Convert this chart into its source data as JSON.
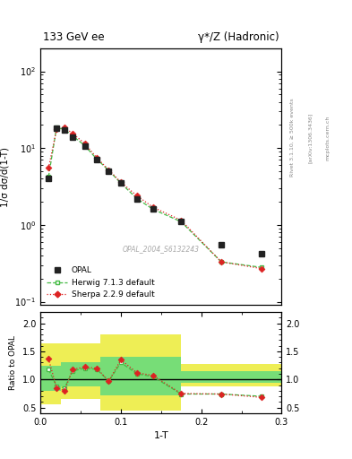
{
  "title_left": "133 GeV ee",
  "title_right": "γ*/Z (Hadronic)",
  "ylabel_main": "1/σ dσ/d(1-T)",
  "ylabel_ratio": "Ratio to OPAL",
  "xlabel": "1-T",
  "watermark": "OPAL_2004_S6132243",
  "rivet_label": "Rivet 3.1.10, ≥ 500k events",
  "arxiv_label": "[arXiv:1306.3436]",
  "mcplots_label": "mcplots.cern.ch",
  "opal_x": [
    0.01,
    0.02,
    0.03,
    0.04,
    0.055,
    0.07,
    0.085,
    0.1,
    0.12,
    0.14,
    0.175,
    0.225,
    0.275
  ],
  "opal_y": [
    4.0,
    18.0,
    17.0,
    14.0,
    10.5,
    7.0,
    5.0,
    3.5,
    2.2,
    1.6,
    1.1,
    0.55,
    0.42
  ],
  "herwig_x": [
    0.01,
    0.02,
    0.03,
    0.04,
    0.055,
    0.07,
    0.085,
    0.1,
    0.12,
    0.14,
    0.175,
    0.225,
    0.275
  ],
  "herwig_y": [
    4.2,
    18.5,
    17.5,
    14.5,
    10.8,
    7.2,
    5.1,
    3.5,
    2.2,
    1.6,
    1.1,
    0.33,
    0.28
  ],
  "sherpa_x": [
    0.01,
    0.02,
    0.03,
    0.04,
    0.055,
    0.07,
    0.085,
    0.1,
    0.12,
    0.14,
    0.175,
    0.225,
    0.275
  ],
  "sherpa_y": [
    5.5,
    17.5,
    18.5,
    15.5,
    11.5,
    7.5,
    5.2,
    3.6,
    2.4,
    1.7,
    1.15,
    0.33,
    0.27
  ],
  "ratio_herwig_x": [
    0.01,
    0.02,
    0.03,
    0.04,
    0.055,
    0.07,
    0.085,
    0.1,
    0.12,
    0.14,
    0.175,
    0.225,
    0.275
  ],
  "ratio_herwig_y": [
    1.18,
    0.88,
    0.85,
    1.15,
    1.2,
    1.18,
    0.97,
    1.3,
    1.1,
    1.05,
    0.74,
    0.74,
    0.7
  ],
  "ratio_sherpa_x": [
    0.01,
    0.02,
    0.03,
    0.04,
    0.055,
    0.07,
    0.085,
    0.1,
    0.12,
    0.14,
    0.175,
    0.225,
    0.275
  ],
  "ratio_sherpa_y": [
    1.37,
    0.85,
    0.8,
    1.18,
    1.22,
    1.2,
    0.97,
    1.35,
    1.12,
    1.07,
    0.75,
    0.74,
    0.68
  ],
  "yellow_bin_edges": [
    0.0,
    0.025,
    0.075,
    0.175,
    0.3
  ],
  "yellow_lo": [
    0.55,
    0.65,
    0.45,
    0.88,
    0.88
  ],
  "yellow_hi": [
    1.65,
    1.65,
    1.8,
    1.28,
    1.28
  ],
  "green_lo": [
    0.8,
    0.88,
    0.72,
    0.94,
    0.94
  ],
  "green_hi": [
    1.25,
    1.3,
    1.4,
    1.15,
    1.15
  ],
  "opal_color": "#222222",
  "herwig_color": "#44bb44",
  "sherpa_color": "#dd2222",
  "green_band_color": "#77dd77",
  "yellow_band_color": "#eeee55",
  "xlim": [
    0.0,
    0.3
  ],
  "ylim_main": [
    0.09,
    200
  ],
  "ylim_ratio": [
    0.4,
    2.2
  ],
  "fig_width": 3.93,
  "fig_height": 5.12,
  "dpi": 100
}
